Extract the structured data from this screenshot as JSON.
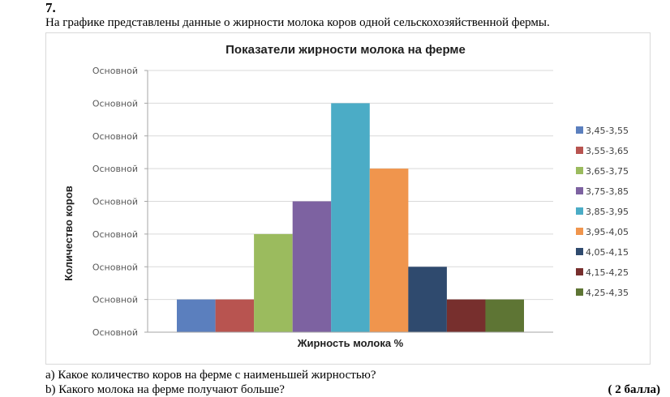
{
  "task": {
    "number": "7.",
    "intro": "На графике представлены данные о жирности молока коров одной сельскохозяйственной фермы.",
    "question_a": "a) Какое количество коров на ферме с наименьшей жирностью?",
    "question_b": "b) Какого молока на ферме получают больше?",
    "points": "( 2 балла)"
  },
  "chart_data": {
    "type": "bar",
    "title": "Показатели жирности молока на ферме",
    "xlabel": "Жирность молока %",
    "ylabel": "Количество коров",
    "y_tick_labels": [
      "Основной",
      "Основной",
      "Основной",
      "Основной",
      "Основной",
      "Основной",
      "Основной",
      "Основной",
      "Основной"
    ],
    "ylim": [
      0,
      8
    ],
    "grid": true,
    "legend_position": "right",
    "series": [
      {
        "name": "3,45-3,55",
        "value": 1,
        "color": "#5b7fbe"
      },
      {
        "name": "3,55-3,65",
        "value": 1,
        "color": "#b85450"
      },
      {
        "name": "3,65-3,75",
        "value": 3,
        "color": "#9bbb5e"
      },
      {
        "name": "3,75-3,85",
        "value": 4,
        "color": "#7d62a1"
      },
      {
        "name": "3,85-3,95",
        "value": 7,
        "color": "#4bacc6"
      },
      {
        "name": "3,95-4,05",
        "value": 5,
        "color": "#f0954d"
      },
      {
        "name": "4,05-4,15",
        "value": 2,
        "color": "#2f4a6e"
      },
      {
        "name": "4,15-4,25",
        "value": 1,
        "color": "#772f2d"
      },
      {
        "name": "4,25-4,35",
        "value": 1,
        "color": "#5e7534"
      }
    ]
  }
}
